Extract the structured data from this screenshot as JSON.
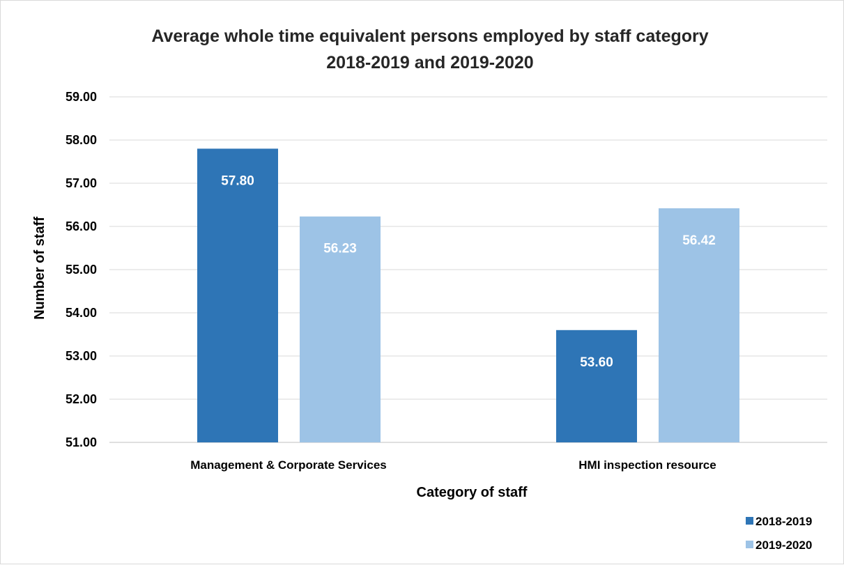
{
  "chart_data": {
    "type": "bar",
    "title_lines": [
      "Average whole time equivalent persons employed by staff category",
      "2018-2019 and 2019-2020"
    ],
    "xlabel": "Category of staff",
    "ylabel": "Number of staff",
    "categories": [
      "Management & Corporate Services",
      "HMI inspection resource"
    ],
    "series": [
      {
        "name": "2018-2019",
        "values": [
          57.8,
          53.6
        ],
        "color": "#2e75b6"
      },
      {
        "name": "2019-2020",
        "values": [
          56.23,
          56.42
        ],
        "color": "#9dc3e6"
      }
    ],
    "data_labels": [
      [
        "57.80",
        "53.60"
      ],
      [
        "56.23",
        "56.42"
      ]
    ],
    "ylim": [
      51,
      59
    ],
    "yticks": [
      "51.00",
      "52.00",
      "53.00",
      "54.00",
      "55.00",
      "56.00",
      "57.00",
      "58.00",
      "59.00"
    ],
    "grid": true,
    "gridline_color": "#d9d9d9",
    "legend_position": "bottom-right"
  }
}
